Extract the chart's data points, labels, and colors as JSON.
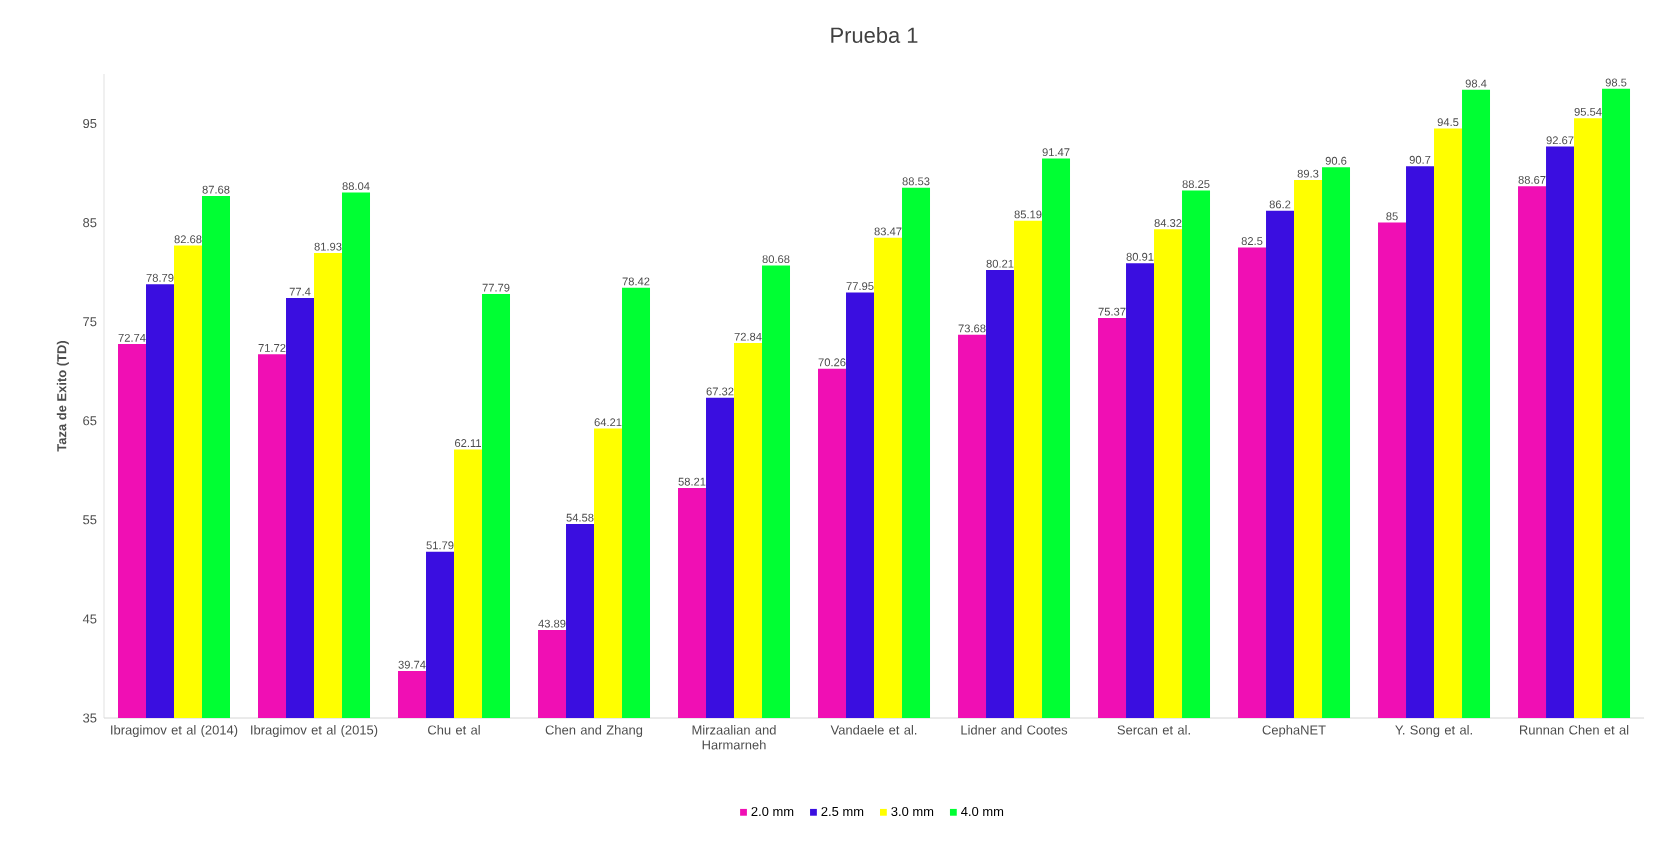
{
  "chart_data": {
    "type": "bar",
    "title": "Prueba 1",
    "ylabel": "Taza de Exito (TD)",
    "categories": [
      "Ibragimov et al (2014)",
      "Ibragimov et al (2015)",
      "Chu et al",
      "Chen and Zhang",
      "Mirzaalian and Harmarneh",
      "Vandaele et al.",
      "Lidner and Cootes",
      "Sercan et al.",
      "CephaNET",
      "Y. Song et al.",
      "Runnan Chen et al"
    ],
    "series": [
      {
        "name": "2.0 mm",
        "color": "#f00fb4",
        "values": [
          72.74,
          71.72,
          39.74,
          43.89,
          58.21,
          70.26,
          73.68,
          75.37,
          82.5,
          85,
          88.67
        ]
      },
      {
        "name": "2.5 mm",
        "color": "#3a0ee0",
        "values": [
          78.79,
          77.4,
          51.79,
          54.58,
          67.32,
          77.95,
          80.21,
          80.91,
          86.2,
          90.7,
          92.67
        ]
      },
      {
        "name": "3.0 mm",
        "color": "#ffff00",
        "values": [
          82.68,
          81.93,
          62.11,
          64.21,
          72.84,
          83.47,
          85.19,
          84.32,
          89.3,
          94.5,
          95.54
        ]
      },
      {
        "name": "4.0 mm",
        "color": "#00ff33",
        "values": [
          87.68,
          88.04,
          77.79,
          78.42,
          80.68,
          88.53,
          91.47,
          88.25,
          90.6,
          98.4,
          98.5
        ]
      }
    ],
    "ylim": [
      35,
      100
    ],
    "yticks": [
      35,
      45,
      55,
      65,
      75,
      85,
      95
    ],
    "data_labels": true,
    "legend": "bottom",
    "grid": false
  }
}
